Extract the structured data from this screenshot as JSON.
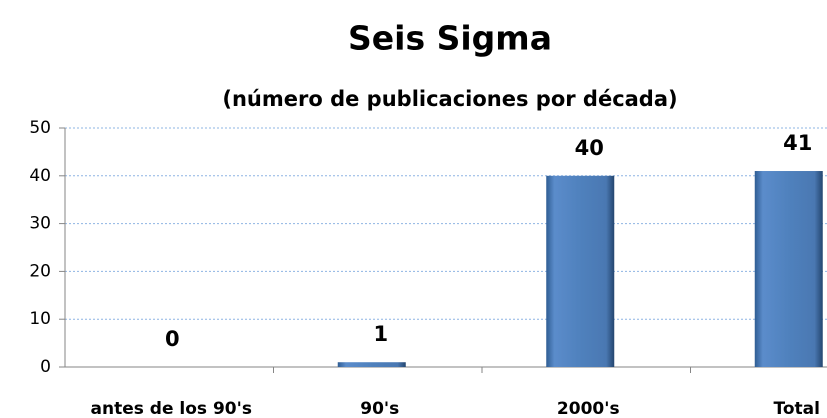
{
  "chart_data": {
    "type": "bar",
    "title": "Seis Sigma",
    "subtitle": "(número de publicaciones por década)",
    "categories": [
      "antes de los 90's",
      "90's",
      "2000's",
      "Total"
    ],
    "values": [
      0,
      1,
      40,
      41
    ],
    "color": "#4f81bd",
    "ylim": [
      0,
      50
    ],
    "yticks": [
      0,
      10,
      20,
      30,
      40,
      50
    ],
    "grid": true
  }
}
